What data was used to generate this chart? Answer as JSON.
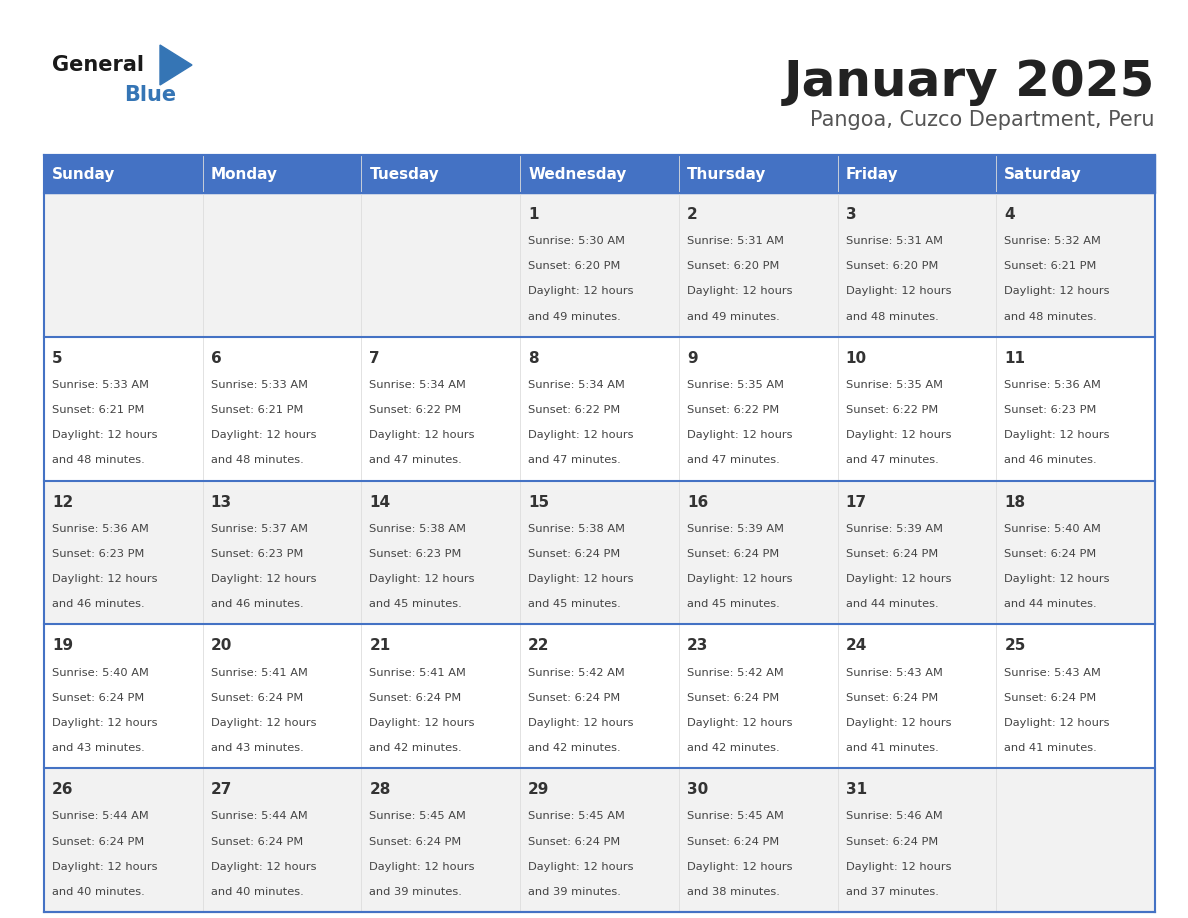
{
  "title": "January 2025",
  "subtitle": "Pangoa, Cuzco Department, Peru",
  "header_bg_color": "#4472C4",
  "header_text_color": "#FFFFFF",
  "day_names": [
    "Sunday",
    "Monday",
    "Tuesday",
    "Wednesday",
    "Thursday",
    "Friday",
    "Saturday"
  ],
  "odd_row_bg": "#F2F2F2",
  "even_row_bg": "#FFFFFF",
  "cell_border_color": "#4472C4",
  "day_number_color": "#333333",
  "info_text_color": "#444444",
  "title_color": "#222222",
  "subtitle_color": "#555555",
  "calendar": [
    [
      {
        "day": "",
        "sunrise": "",
        "sunset": "",
        "daylight": ""
      },
      {
        "day": "",
        "sunrise": "",
        "sunset": "",
        "daylight": ""
      },
      {
        "day": "",
        "sunrise": "",
        "sunset": "",
        "daylight": ""
      },
      {
        "day": "1",
        "sunrise": "5:30 AM",
        "sunset": "6:20 PM",
        "daylight": "12 hours and 49 minutes."
      },
      {
        "day": "2",
        "sunrise": "5:31 AM",
        "sunset": "6:20 PM",
        "daylight": "12 hours and 49 minutes."
      },
      {
        "day": "3",
        "sunrise": "5:31 AM",
        "sunset": "6:20 PM",
        "daylight": "12 hours and 48 minutes."
      },
      {
        "day": "4",
        "sunrise": "5:32 AM",
        "sunset": "6:21 PM",
        "daylight": "12 hours and 48 minutes."
      }
    ],
    [
      {
        "day": "5",
        "sunrise": "5:33 AM",
        "sunset": "6:21 PM",
        "daylight": "12 hours and 48 minutes."
      },
      {
        "day": "6",
        "sunrise": "5:33 AM",
        "sunset": "6:21 PM",
        "daylight": "12 hours and 48 minutes."
      },
      {
        "day": "7",
        "sunrise": "5:34 AM",
        "sunset": "6:22 PM",
        "daylight": "12 hours and 47 minutes."
      },
      {
        "day": "8",
        "sunrise": "5:34 AM",
        "sunset": "6:22 PM",
        "daylight": "12 hours and 47 minutes."
      },
      {
        "day": "9",
        "sunrise": "5:35 AM",
        "sunset": "6:22 PM",
        "daylight": "12 hours and 47 minutes."
      },
      {
        "day": "10",
        "sunrise": "5:35 AM",
        "sunset": "6:22 PM",
        "daylight": "12 hours and 47 minutes."
      },
      {
        "day": "11",
        "sunrise": "5:36 AM",
        "sunset": "6:23 PM",
        "daylight": "12 hours and 46 minutes."
      }
    ],
    [
      {
        "day": "12",
        "sunrise": "5:36 AM",
        "sunset": "6:23 PM",
        "daylight": "12 hours and 46 minutes."
      },
      {
        "day": "13",
        "sunrise": "5:37 AM",
        "sunset": "6:23 PM",
        "daylight": "12 hours and 46 minutes."
      },
      {
        "day": "14",
        "sunrise": "5:38 AM",
        "sunset": "6:23 PM",
        "daylight": "12 hours and 45 minutes."
      },
      {
        "day": "15",
        "sunrise": "5:38 AM",
        "sunset": "6:24 PM",
        "daylight": "12 hours and 45 minutes."
      },
      {
        "day": "16",
        "sunrise": "5:39 AM",
        "sunset": "6:24 PM",
        "daylight": "12 hours and 45 minutes."
      },
      {
        "day": "17",
        "sunrise": "5:39 AM",
        "sunset": "6:24 PM",
        "daylight": "12 hours and 44 minutes."
      },
      {
        "day": "18",
        "sunrise": "5:40 AM",
        "sunset": "6:24 PM",
        "daylight": "12 hours and 44 minutes."
      }
    ],
    [
      {
        "day": "19",
        "sunrise": "5:40 AM",
        "sunset": "6:24 PM",
        "daylight": "12 hours and 43 minutes."
      },
      {
        "day": "20",
        "sunrise": "5:41 AM",
        "sunset": "6:24 PM",
        "daylight": "12 hours and 43 minutes."
      },
      {
        "day": "21",
        "sunrise": "5:41 AM",
        "sunset": "6:24 PM",
        "daylight": "12 hours and 42 minutes."
      },
      {
        "day": "22",
        "sunrise": "5:42 AM",
        "sunset": "6:24 PM",
        "daylight": "12 hours and 42 minutes."
      },
      {
        "day": "23",
        "sunrise": "5:42 AM",
        "sunset": "6:24 PM",
        "daylight": "12 hours and 42 minutes."
      },
      {
        "day": "24",
        "sunrise": "5:43 AM",
        "sunset": "6:24 PM",
        "daylight": "12 hours and 41 minutes."
      },
      {
        "day": "25",
        "sunrise": "5:43 AM",
        "sunset": "6:24 PM",
        "daylight": "12 hours and 41 minutes."
      }
    ],
    [
      {
        "day": "26",
        "sunrise": "5:44 AM",
        "sunset": "6:24 PM",
        "daylight": "12 hours and 40 minutes."
      },
      {
        "day": "27",
        "sunrise": "5:44 AM",
        "sunset": "6:24 PM",
        "daylight": "12 hours and 40 minutes."
      },
      {
        "day": "28",
        "sunrise": "5:45 AM",
        "sunset": "6:24 PM",
        "daylight": "12 hours and 39 minutes."
      },
      {
        "day": "29",
        "sunrise": "5:45 AM",
        "sunset": "6:24 PM",
        "daylight": "12 hours and 39 minutes."
      },
      {
        "day": "30",
        "sunrise": "5:45 AM",
        "sunset": "6:24 PM",
        "daylight": "12 hours and 38 minutes."
      },
      {
        "day": "31",
        "sunrise": "5:46 AM",
        "sunset": "6:24 PM",
        "daylight": "12 hours and 37 minutes."
      },
      {
        "day": "",
        "sunrise": "",
        "sunset": "",
        "daylight": ""
      }
    ]
  ],
  "logo_triangle_color": "#3575B5"
}
